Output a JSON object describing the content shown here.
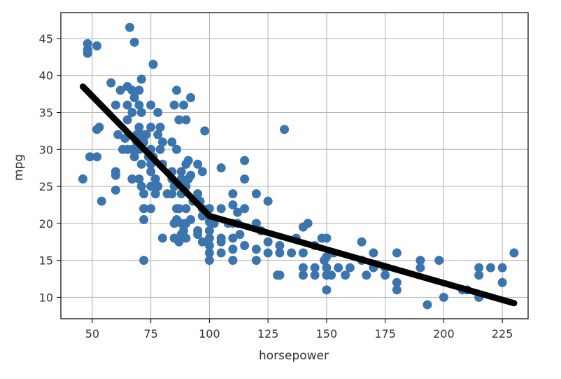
{
  "chart_data": {
    "type": "scatter",
    "xlabel": "horsepower",
    "ylabel": "mpg",
    "xlim": [
      36.6,
      236
    ],
    "ylim": [
      7.1,
      48.5
    ],
    "x_ticks": [
      50,
      75,
      100,
      125,
      150,
      175,
      200,
      225
    ],
    "y_ticks": [
      10,
      15,
      20,
      25,
      30,
      35,
      40,
      45
    ],
    "x_tick_labels": [
      "50",
      "75",
      "100",
      "125",
      "150",
      "175",
      "200",
      "225"
    ],
    "y_tick_labels": [
      "10",
      "15",
      "20",
      "25",
      "30",
      "35",
      "40",
      "45"
    ],
    "grid": true,
    "colors": {
      "points": "#3b75af",
      "line": "#000000",
      "grid": "#b0b0b0",
      "frame": "#000000"
    },
    "series": [
      {
        "type": "scatter",
        "points": [
          [
            46,
            26
          ],
          [
            48,
            43
          ],
          [
            48,
            43.5
          ],
          [
            48,
            44.3
          ],
          [
            49,
            29
          ],
          [
            52,
            29
          ],
          [
            52,
            32.7
          ],
          [
            52,
            44
          ],
          [
            53,
            33
          ],
          [
            54,
            23
          ],
          [
            58,
            39
          ],
          [
            60,
            26.5
          ],
          [
            60,
            27
          ],
          [
            60,
            24.5
          ],
          [
            60,
            36
          ],
          [
            61,
            32
          ],
          [
            62,
            38
          ],
          [
            63,
            30
          ],
          [
            64,
            31.5
          ],
          [
            65,
            34
          ],
          [
            65,
            30
          ],
          [
            65,
            38.5
          ],
          [
            65,
            36
          ],
          [
            66,
            46.5
          ],
          [
            67,
            35
          ],
          [
            67,
            38
          ],
          [
            67,
            30
          ],
          [
            67,
            26
          ],
          [
            68,
            37
          ],
          [
            68,
            29
          ],
          [
            68,
            44.5
          ],
          [
            69,
            32
          ],
          [
            69,
            31
          ],
          [
            70,
            36
          ],
          [
            70,
            30
          ],
          [
            70,
            33
          ],
          [
            70,
            38
          ],
          [
            70,
            26
          ],
          [
            71,
            32
          ],
          [
            71,
            35
          ],
          [
            71,
            39.5
          ],
          [
            71,
            25
          ],
          [
            71,
            28
          ],
          [
            72,
            15
          ],
          [
            72,
            31
          ],
          [
            72,
            24
          ],
          [
            72,
            22
          ],
          [
            72,
            20.5
          ],
          [
            73,
            32
          ],
          [
            74,
            29
          ],
          [
            75,
            27
          ],
          [
            75,
            30
          ],
          [
            75,
            33
          ],
          [
            75,
            36
          ],
          [
            75,
            25
          ],
          [
            75,
            22
          ],
          [
            75,
            28
          ],
          [
            76,
            41.5
          ],
          [
            76,
            29
          ],
          [
            77,
            24
          ],
          [
            77,
            26
          ],
          [
            78,
            35
          ],
          [
            78,
            32
          ],
          [
            78,
            25
          ],
          [
            79,
            33
          ],
          [
            79,
            30
          ],
          [
            80,
            28
          ],
          [
            80,
            18
          ],
          [
            80,
            31
          ],
          [
            82,
            24
          ],
          [
            84,
            27
          ],
          [
            84,
            24
          ],
          [
            84,
            31
          ],
          [
            84,
            26
          ],
          [
            85,
            36
          ],
          [
            85,
            18
          ],
          [
            85,
            20
          ],
          [
            85,
            25
          ],
          [
            86,
            38
          ],
          [
            86,
            22
          ],
          [
            86,
            30
          ],
          [
            86,
            20.5
          ],
          [
            87,
            34
          ],
          [
            87,
            22
          ],
          [
            87,
            17.5
          ],
          [
            88,
            24
          ],
          [
            88,
            27
          ],
          [
            88,
            20
          ],
          [
            88,
            18.5
          ],
          [
            88,
            26
          ],
          [
            89,
            36
          ],
          [
            89,
            19
          ],
          [
            90,
            28
          ],
          [
            90,
            25
          ],
          [
            90,
            20
          ],
          [
            90,
            34
          ],
          [
            90,
            18
          ],
          [
            90,
            22
          ],
          [
            91,
            26
          ],
          [
            91,
            28.5
          ],
          [
            92,
            37
          ],
          [
            92,
            20.5
          ],
          [
            92,
            26.5
          ],
          [
            93,
            23
          ],
          [
            95,
            24
          ],
          [
            95,
            19
          ],
          [
            95,
            18.5
          ],
          [
            95,
            28
          ],
          [
            96,
            23
          ],
          [
            97,
            21
          ],
          [
            97,
            22
          ],
          [
            97,
            27
          ],
          [
            97,
            17.5
          ],
          [
            98,
            32.5
          ],
          [
            100,
            18
          ],
          [
            100,
            16
          ],
          [
            100,
            19
          ],
          [
            100,
            17
          ],
          [
            100,
            22
          ],
          [
            100,
            15
          ],
          [
            100,
            20.2
          ],
          [
            102,
            20
          ],
          [
            105,
            18
          ],
          [
            105,
            27.5
          ],
          [
            105,
            16
          ],
          [
            105,
            17.5
          ],
          [
            105,
            22
          ],
          [
            108,
            20
          ],
          [
            110,
            18
          ],
          [
            110,
            20
          ],
          [
            110,
            16.5
          ],
          [
            110,
            22.5
          ],
          [
            110,
            24
          ],
          [
            110,
            15
          ],
          [
            112,
            20
          ],
          [
            112,
            21.5
          ],
          [
            113,
            18.5
          ],
          [
            115,
            26
          ],
          [
            115,
            28.5
          ],
          [
            115,
            22
          ],
          [
            115,
            17
          ],
          [
            120,
            16.5
          ],
          [
            120,
            24
          ],
          [
            120,
            20
          ],
          [
            120,
            15
          ],
          [
            122,
            19
          ],
          [
            125,
            23
          ],
          [
            125,
            17.5
          ],
          [
            125,
            16
          ],
          [
            129,
            13
          ],
          [
            130,
            13
          ],
          [
            130,
            16
          ],
          [
            130,
            17
          ],
          [
            132,
            32.7
          ],
          [
            135,
            16
          ],
          [
            137,
            18
          ],
          [
            140,
            14
          ],
          [
            140,
            16
          ],
          [
            140,
            19.5
          ],
          [
            140,
            13
          ],
          [
            142,
            20
          ],
          [
            145,
            13
          ],
          [
            145,
            14
          ],
          [
            145,
            17
          ],
          [
            148,
            18
          ],
          [
            149,
            15
          ],
          [
            150,
            14
          ],
          [
            150,
            13
          ],
          [
            150,
            18
          ],
          [
            150,
            15.5
          ],
          [
            150,
            11
          ],
          [
            152,
            13
          ],
          [
            153,
            16
          ],
          [
            155,
            14
          ],
          [
            158,
            13
          ],
          [
            160,
            14
          ],
          [
            165,
            17.5
          ],
          [
            165,
            15
          ],
          [
            167,
            13
          ],
          [
            170,
            16
          ],
          [
            170,
            14
          ],
          [
            175,
            14
          ],
          [
            175,
            13
          ],
          [
            180,
            16
          ],
          [
            180,
            11
          ],
          [
            180,
            12
          ],
          [
            190,
            15
          ],
          [
            190,
            14
          ],
          [
            193,
            9
          ],
          [
            198,
            15
          ],
          [
            200,
            10
          ],
          [
            208,
            11
          ],
          [
            210,
            11
          ],
          [
            215,
            13
          ],
          [
            215,
            14
          ],
          [
            215,
            10
          ],
          [
            220,
            14
          ],
          [
            225,
            14
          ],
          [
            225,
            12
          ],
          [
            230,
            16
          ]
        ]
      },
      {
        "type": "line",
        "points": [
          [
            46,
            38.5
          ],
          [
            100,
            21
          ],
          [
            230,
            9.2
          ]
        ]
      }
    ]
  }
}
